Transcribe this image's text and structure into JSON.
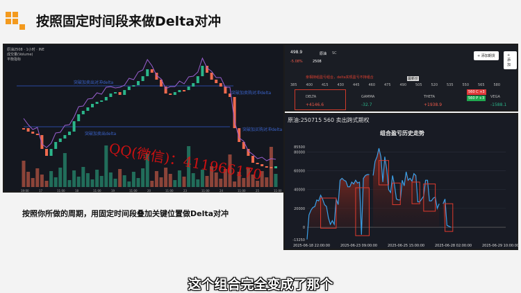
{
  "slide": {
    "title": "按照固定时间段来做Delta对冲",
    "description": "按照你所做的周期，用固定时间段叠加关键位置做Delta对冲",
    "subtitle": "这个组合完全变成了那个",
    "watermark": "QQ(微信)：411966170",
    "logo_color": "#f39a1e"
  },
  "kline": {
    "symbol": "原油2508 · 1小时 · INE",
    "vol_label": "成交量(Volume)",
    "ma_label": "平衡指标",
    "annotations": [
      "突破加卖出对冲delta",
      "突破加卖出delta",
      "突破加卖购对冲delta",
      "突破加买购对冲delta"
    ],
    "up_color": "#2bb58a",
    "down_color": "#ef6a4e",
    "line_color": "#2a4aa0",
    "x_labels": [
      "19:00",
      "17",
      "11:00",
      "18",
      "11:00",
      "19",
      "11:00",
      "20",
      "11:00",
      "23",
      "11:00",
      "24",
      "11:00",
      "25",
      "11:00"
    ]
  },
  "option_panel": {
    "price": "498.9",
    "change": "-5.08%",
    "product": "原油",
    "exchange": "SC",
    "expiry": "2508",
    "add_buttons": [
      "+ 添加期货",
      "+ 添加"
    ],
    "note": "亲相持组盈亏组合，delta实现盈亏不持组合",
    "strikes": [
      "385",
      "400",
      "415",
      "430",
      "445",
      "460",
      "475",
      "490",
      "505",
      "520",
      "535",
      "550",
      "565",
      "580"
    ],
    "current_price_tag": "最新价",
    "greeks": [
      {
        "name": "DELTA",
        "value": "+4146.6",
        "color": "#ef5a4a"
      },
      {
        "name": "GAMMA",
        "value": "-32.7",
        "color": "#2bb58a"
      },
      {
        "name": "THETA",
        "value": "+1938.9",
        "color": "#ef5a4a"
      },
      {
        "name": "VEGA",
        "value": "-1588.1",
        "color": "#2bb58a"
      }
    ],
    "positions": [
      {
        "label": "560 C",
        "qty": "+3",
        "color": "#e03b3b"
      },
      {
        "label": "560 P",
        "qty": "+3",
        "color": "#1fa84f"
      }
    ]
  },
  "pnl_panel": {
    "header": "原油:250715 560 卖出跨式期权"
  },
  "chart_data": {
    "type": "area",
    "title": "组合盈亏历史走势",
    "xlabel": "",
    "ylabel": "",
    "ylim": [
      -13250,
      85500
    ],
    "y_ticks": [
      "85500",
      "80000",
      "60000",
      "40000",
      "20000",
      "0",
      "-13250"
    ],
    "x_ticks": [
      "2025-06-18 22:00:00",
      "2025-06-23 09:00:00",
      "2025-06-25 15:00:00",
      "2025-06-28 02:00:00",
      "2025-06-29 10:00:00"
    ],
    "line_color": "#3aa0e8",
    "grid": true,
    "values": [
      -13000,
      13000,
      18000,
      21000,
      22000,
      29000,
      28000,
      34000,
      30000,
      24000,
      22000,
      10000,
      3000,
      7000,
      3000,
      30000,
      24000,
      50000,
      52000,
      50000,
      49000,
      43000,
      43000,
      48000,
      46000,
      50000,
      47000,
      48000,
      -8000,
      52000,
      55000,
      56000,
      56000,
      null,
      55000,
      70000,
      75000,
      84000,
      75000,
      48000,
      75000,
      62000,
      40000,
      37000,
      55000,
      45000,
      30000,
      29000,
      29000,
      50000,
      44000,
      59000,
      50000,
      52000,
      49000,
      57000,
      55000,
      27000,
      27000,
      30000,
      33000,
      50000,
      50000,
      28000,
      28000,
      31000,
      32000,
      20000,
      25000,
      null,
      25000,
      30000,
      2000,
      1000,
      0
    ],
    "highlight_boxes": [
      {
        "from": 7,
        "to": 15,
        "low": -1000,
        "high": 31000
      },
      {
        "from": 25,
        "to": 32,
        "low": -9000,
        "high": 42000
      },
      {
        "from": 37,
        "to": 42,
        "low": 45000,
        "high": 71000
      },
      {
        "from": 44,
        "to": 48,
        "low": 24000,
        "high": 47000
      },
      {
        "from": 54,
        "to": 58,
        "low": 25000,
        "high": 48000
      },
      {
        "from": 60,
        "to": 66,
        "low": 17000,
        "high": 46000
      },
      {
        "from": 71,
        "to": 75,
        "low": -4500,
        "high": 25000
      }
    ],
    "box_color": "#e03b2e"
  }
}
